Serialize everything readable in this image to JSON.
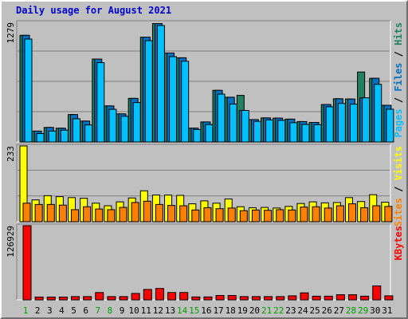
{
  "title": "Daily usage for August 2021",
  "chart_data": [
    {
      "type": "bar",
      "name": "Pages / Files / Hits",
      "legend": [
        "Pages",
        "/",
        "Files",
        "/",
        "Hits"
      ],
      "legend_colors": [
        "#00c0ff",
        "#000000",
        "#0070c0",
        "#000000",
        "#208060"
      ],
      "max_label": "1279",
      "ylim": [
        0,
        1279
      ],
      "categories": [
        "1",
        "2",
        "3",
        "4",
        "5",
        "6",
        "7",
        "8",
        "9",
        "10",
        "11",
        "12",
        "13",
        "14",
        "15",
        "16",
        "17",
        "18",
        "19",
        "20",
        "21",
        "22",
        "23",
        "24",
        "25",
        "26",
        "27",
        "28",
        "29",
        "30",
        "31"
      ],
      "series": [
        {
          "name": "Hits",
          "color": "#208060",
          "values": [
            1140,
            116,
            155,
            147,
            293,
            223,
            886,
            385,
            300,
            466,
            1121,
            1266,
            951,
            900,
            148,
            214,
            552,
            478,
            498,
            239,
            257,
            255,
            244,
            218,
            209,
            400,
            462,
            459,
            748,
            681,
            392
          ]
        },
        {
          "name": "Files",
          "color": "#0070c0",
          "values": [
            1140,
            116,
            155,
            147,
            293,
            223,
            886,
            385,
            300,
            466,
            1121,
            1266,
            951,
            900,
            148,
            214,
            552,
            478,
            337,
            239,
            257,
            255,
            244,
            218,
            209,
            400,
            462,
            459,
            470,
            681,
            392
          ]
        },
        {
          "name": "Pages",
          "color": "#00c0ff",
          "values": [
            1100,
            90,
            117,
            126,
            248,
            182,
            848,
            349,
            275,
            421,
            1083,
            1245,
            912,
            863,
            133,
            186,
            511,
            405,
            337,
            220,
            236,
            231,
            206,
            187,
            185,
            376,
            412,
            404,
            472,
            616,
            350
          ]
        }
      ]
    },
    {
      "type": "bar",
      "name": "Sites / Visits",
      "legend": [
        "Sites",
        "/",
        "Visits"
      ],
      "legend_colors": [
        "#ff8000",
        "#000000",
        "#ffff00"
      ],
      "max_label": "233",
      "ylim": [
        0,
        233
      ],
      "categories": [
        "1",
        "2",
        "3",
        "4",
        "5",
        "6",
        "7",
        "8",
        "9",
        "10",
        "11",
        "12",
        "13",
        "14",
        "15",
        "16",
        "17",
        "18",
        "19",
        "20",
        "21",
        "22",
        "23",
        "24",
        "25",
        "26",
        "27",
        "28",
        "29",
        "30",
        "31"
      ],
      "series": [
        {
          "name": "Visits",
          "color": "#ffff00",
          "values": [
            233,
            67,
            80,
            77,
            74,
            72,
            57,
            49,
            61,
            73,
            95,
            82,
            82,
            81,
            55,
            64,
            57,
            70,
            46,
            43,
            44,
            42,
            47,
            56,
            61,
            58,
            59,
            74,
            62,
            83,
            60
          ]
        },
        {
          "name": "Sites",
          "color": "#ff8000",
          "values": [
            57,
            53,
            53,
            51,
            37,
            46,
            39,
            37,
            44,
            59,
            63,
            53,
            50,
            49,
            36,
            43,
            40,
            42,
            34,
            36,
            35,
            37,
            36,
            45,
            46,
            42,
            49,
            55,
            43,
            49,
            47
          ]
        }
      ]
    },
    {
      "type": "bar",
      "name": "KBytes",
      "legend": [
        "KBytes"
      ],
      "legend_colors": [
        "#ff0000"
      ],
      "max_label": "126929",
      "ylim": [
        0,
        126929
      ],
      "categories": [
        "1",
        "2",
        "3",
        "4",
        "5",
        "6",
        "7",
        "8",
        "9",
        "10",
        "11",
        "12",
        "13",
        "14",
        "15",
        "16",
        "17",
        "18",
        "19",
        "20",
        "21",
        "22",
        "23",
        "24",
        "25",
        "26",
        "27",
        "28",
        "29",
        "30",
        "31"
      ],
      "series": [
        {
          "name": "KBytes",
          "color": "#ff0000",
          "values": [
            126929,
            4800,
            4800,
            4800,
            5600,
            5600,
            12500,
            5600,
            5600,
            11000,
            17800,
            19500,
            12600,
            12600,
            5000,
            5000,
            7500,
            7500,
            5600,
            5600,
            5600,
            5600,
            6900,
            12000,
            6300,
            6300,
            8800,
            8800,
            6300,
            23900,
            6900
          ]
        }
      ]
    }
  ],
  "x_axis": {
    "labels": [
      "1",
      "2",
      "3",
      "4",
      "5",
      "6",
      "7",
      "8",
      "9",
      "10",
      "11",
      "12",
      "13",
      "14",
      "15",
      "16",
      "17",
      "18",
      "19",
      "20",
      "21",
      "22",
      "23",
      "24",
      "25",
      "26",
      "27",
      "28",
      "29",
      "30",
      "31"
    ],
    "colors": [
      "#00a000",
      "#000000",
      "#000000",
      "#000000",
      "#000000",
      "#000000",
      "#00a000",
      "#00a000",
      "#000000",
      "#000000",
      "#000000",
      "#000000",
      "#000000",
      "#00a000",
      "#00a000",
      "#000000",
      "#000000",
      "#000000",
      "#000000",
      "#000000",
      "#00a000",
      "#00a000",
      "#000000",
      "#000000",
      "#000000",
      "#000000",
      "#000000",
      "#00a000",
      "#00a000",
      "#000000",
      "#000000"
    ]
  }
}
